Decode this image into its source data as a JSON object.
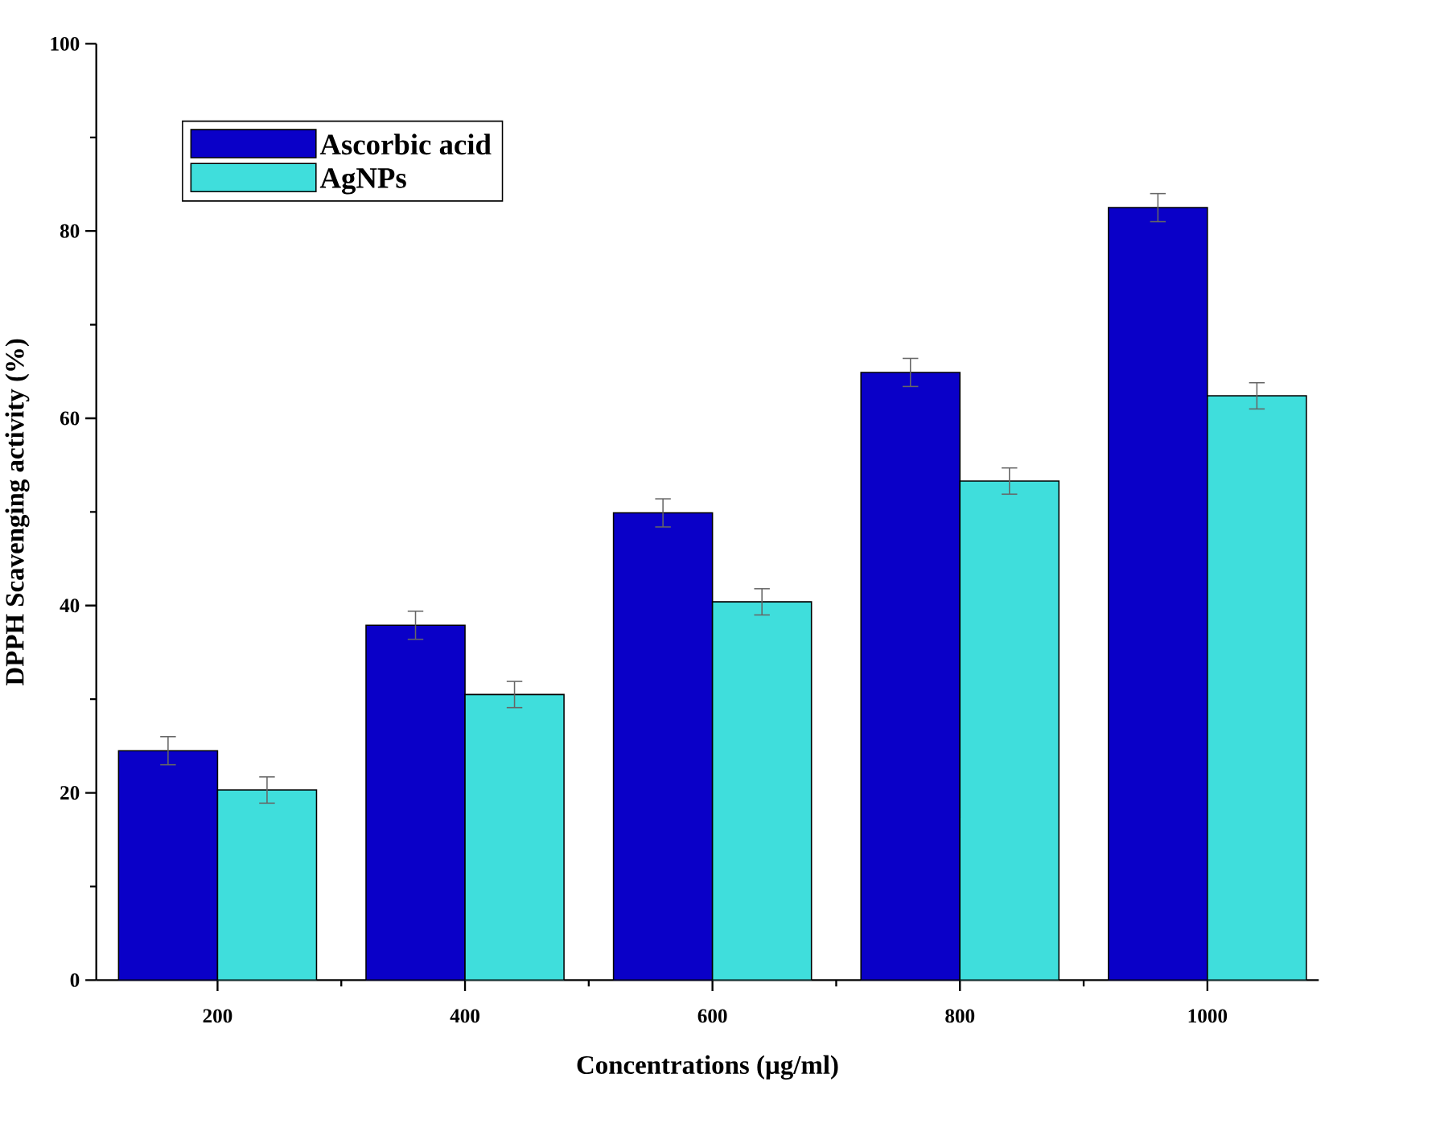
{
  "chart_data": {
    "type": "bar",
    "xlabel": "Concentrations (µg/ml)",
    "ylabel": "DPPH Scavenging activity (%)",
    "categories": [
      "200",
      "400",
      "600",
      "800",
      "1000"
    ],
    "series": [
      {
        "name": "Ascorbic acid",
        "color": "#0a00c8",
        "values": [
          24.5,
          37.9,
          49.9,
          64.9,
          82.5
        ],
        "errors": [
          1.5,
          1.5,
          1.5,
          1.5,
          1.5
        ]
      },
      {
        "name": "AgNPs",
        "color": "#3fdedc",
        "values": [
          20.3,
          30.5,
          40.4,
          53.3,
          62.4
        ],
        "errors": [
          1.4,
          1.4,
          1.4,
          1.4,
          1.4
        ]
      }
    ],
    "ylim": [
      0,
      100
    ],
    "yticks": [
      0,
      20,
      40,
      60,
      80,
      100
    ],
    "legend": "top left"
  }
}
